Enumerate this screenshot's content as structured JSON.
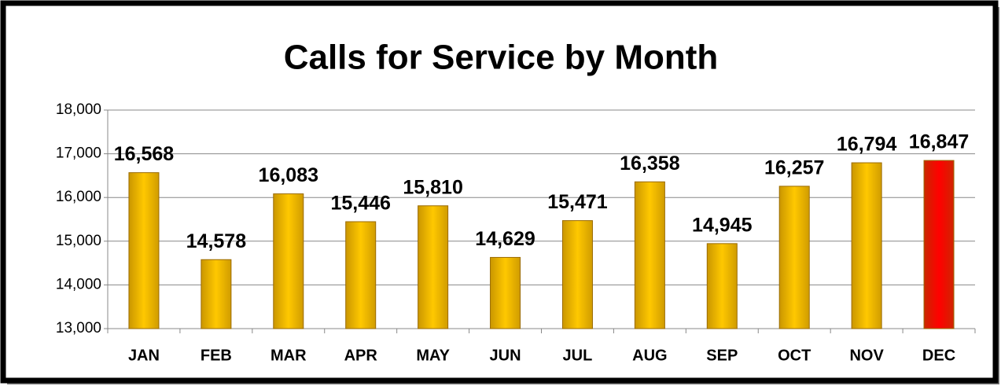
{
  "chart_data": {
    "type": "bar",
    "title": "Calls for Service by Month",
    "categories": [
      "JAN",
      "FEB",
      "MAR",
      "APR",
      "MAY",
      "JUN",
      "JUL",
      "AUG",
      "SEP",
      "OCT",
      "NOV",
      "DEC"
    ],
    "values": [
      16568,
      14578,
      16083,
      15446,
      15810,
      14629,
      15471,
      16358,
      14945,
      16257,
      16794,
      16847
    ],
    "value_labels": [
      "16,568",
      "14,578",
      "16,083",
      "15,446",
      "15,810",
      "14,629",
      "15,471",
      "16,358",
      "14,945",
      "16,257",
      "16,794",
      "16,847"
    ],
    "colors": [
      "#ffc800",
      "#ffc800",
      "#ffc800",
      "#ffc800",
      "#ffc800",
      "#ffc800",
      "#ffc800",
      "#ffc800",
      "#ffc800",
      "#ffc800",
      "#ffc800",
      "#ff0000"
    ],
    "ylim": [
      13000,
      18000
    ],
    "yticks": [
      {
        "value": 13000,
        "label": "13,000"
      },
      {
        "value": 14000,
        "label": "14,000"
      },
      {
        "value": 15000,
        "label": "15,000"
      },
      {
        "value": 16000,
        "label": "16,000"
      },
      {
        "value": 17000,
        "label": "17,000"
      },
      {
        "value": 18000,
        "label": "18,000"
      }
    ],
    "grid": true
  }
}
